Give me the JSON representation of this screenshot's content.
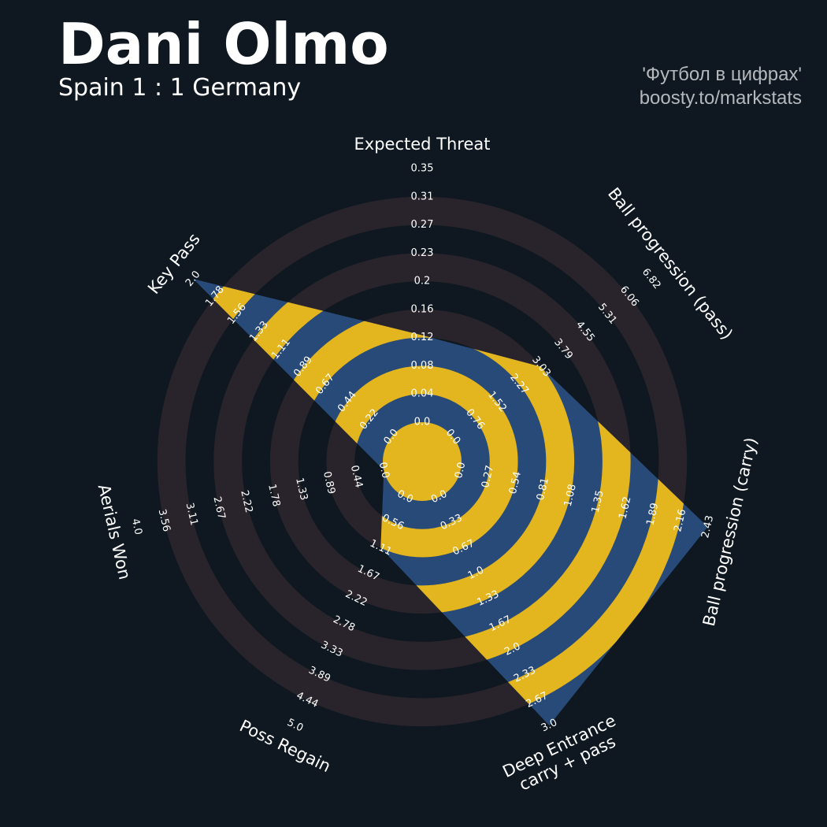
{
  "header": {
    "player": "Dani Olmo",
    "match": "Spain 1 : 1 Germany",
    "credit_line1": "'Футбол в цифрах'",
    "credit_line2": "boosty.to/markstats"
  },
  "colors": {
    "background": "#0f1820",
    "ring_band": "#29242b",
    "polygon_fill": "#284a78",
    "polygon_band": "#e3b51e",
    "text": "#ffffff",
    "credit_text": "#b4b8bc"
  },
  "chart_data": {
    "type": "radar",
    "title": "Dani Olmo",
    "subtitle": "Spain 1 : 1 Germany",
    "axes": [
      {
        "label": "Expected Threat",
        "lines": [
          "Expected Threat"
        ],
        "min": 0.0,
        "max": 0.35,
        "value": 0.12,
        "ticks": [
          "0.0",
          "0.04",
          "0.08",
          "0.12",
          "0.16",
          "0.2",
          "0.23",
          "0.27",
          "0.31",
          "0.35"
        ]
      },
      {
        "label": "Ball progression (pass)",
        "lines": [
          "Ball progression (pass)"
        ],
        "min": 0.0,
        "max": 6.82,
        "value": 3.03,
        "ticks": [
          "0.0",
          "0.76",
          "1.52",
          "2.27",
          "3.03",
          "3.79",
          "4.55",
          "5.31",
          "6.06",
          "6.82"
        ]
      },
      {
        "label": "Ball progression (carry)",
        "lines": [
          "Ball progression (carry)"
        ],
        "min": 0.0,
        "max": 2.43,
        "value": 2.43,
        "ticks": [
          "0.0",
          "0.27",
          "0.54",
          "0.81",
          "1.08",
          "1.35",
          "1.62",
          "1.89",
          "2.16",
          "2.43"
        ]
      },
      {
        "label": "Deep Entrance carry + pass",
        "lines": [
          "Deep Entrance",
          "carry + pass"
        ],
        "min": 0.0,
        "max": 3.0,
        "value": 3.0,
        "ticks": [
          "0.0",
          "0.33",
          "0.67",
          "1.0",
          "1.33",
          "1.67",
          "2.0",
          "2.33",
          "2.67",
          "3.0"
        ]
      },
      {
        "label": "Poss Regain",
        "lines": [
          "Poss Regain"
        ],
        "min": 0.0,
        "max": 5.0,
        "value": 1.11,
        "ticks": [
          "0.0",
          "0.56",
          "1.11",
          "1.67",
          "2.22",
          "2.78",
          "3.33",
          "3.89",
          "4.44",
          "5.0"
        ]
      },
      {
        "label": "Aerials Won",
        "lines": [
          "Aerials Won"
        ],
        "min": 0.0,
        "max": 4.0,
        "value": 0.0,
        "ticks": [
          "0.0",
          "0.44",
          "0.89",
          "1.33",
          "1.78",
          "2.22",
          "2.67",
          "3.11",
          "3.56",
          "4.0"
        ]
      },
      {
        "label": "Key Pass",
        "lines": [
          "Key Pass"
        ],
        "min": 0.0,
        "max": 2.0,
        "value": 2.0,
        "ticks": [
          "0.0",
          "0.22",
          "0.44",
          "0.67",
          "0.89",
          "1.11",
          "1.33",
          "1.56",
          "1.78",
          "2.0"
        ]
      }
    ]
  }
}
